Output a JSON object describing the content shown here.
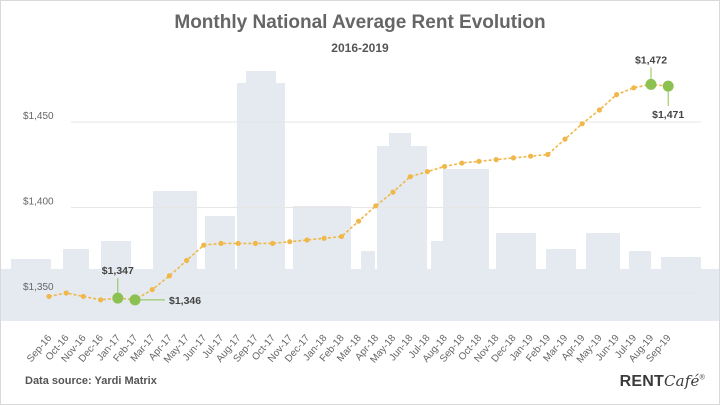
{
  "title": "Monthly National Average Rent Evolution",
  "subtitle": "2016-2019",
  "source": "Data source: Yardi Matrix",
  "brand": {
    "main": "RENT",
    "italic": "Café",
    "mark": "®"
  },
  "colors": {
    "line": "#f0b84a",
    "highlight": "#8cc152",
    "skyline": "#e4eaef",
    "grid": "#e6e6e6"
  },
  "chart_data": {
    "type": "line",
    "title": "Monthly National Average Rent Evolution",
    "subtitle": "2016-2019",
    "xlabel": "",
    "ylabel": "",
    "ylim": [
      1340,
      1480
    ],
    "yticks": [
      {
        "value": 1350,
        "label": "$1,350"
      },
      {
        "value": 1400,
        "label": "$1,400"
      },
      {
        "value": 1450,
        "label": "$1,450"
      }
    ],
    "grid": true,
    "categories": [
      "Sep-16",
      "Oct-16",
      "Nov-16",
      "Dec-16",
      "Jan-17",
      "Feb-17",
      "Mar-17",
      "Apr-17",
      "May-17",
      "Jun-17",
      "Jul-17",
      "Aug-17",
      "Sep-17",
      "Oct-17",
      "Nov-17",
      "Dec-17",
      "Jan-18",
      "Feb-18",
      "Mar-18",
      "Apr-18",
      "May-18",
      "Jun-18",
      "Jul-18",
      "Aug-18",
      "Sep-18",
      "Oct-18",
      "Nov-18",
      "Dec-18",
      "Jan-19",
      "Feb-19",
      "Mar-19",
      "Apr-19",
      "May-19",
      "Jun-19",
      "Jul-19",
      "Aug-19",
      "Sep-19"
    ],
    "values": [
      1348,
      1350,
      1348,
      1346,
      1347,
      1346,
      1352,
      1360,
      1369,
      1378,
      1379,
      1379,
      1379,
      1379,
      1380,
      1381,
      1382,
      1383,
      1392,
      1401,
      1409,
      1418,
      1421,
      1424,
      1426,
      1427,
      1428,
      1429,
      1430,
      1431,
      1440,
      1449,
      1457,
      1466,
      1470,
      1472,
      1471
    ],
    "highlights": [
      {
        "index": 4,
        "label": "$1,347"
      },
      {
        "index": 5,
        "label": "$1,346"
      },
      {
        "index": 35,
        "label": "$1,472"
      },
      {
        "index": 36,
        "label": "$1,471"
      }
    ]
  }
}
